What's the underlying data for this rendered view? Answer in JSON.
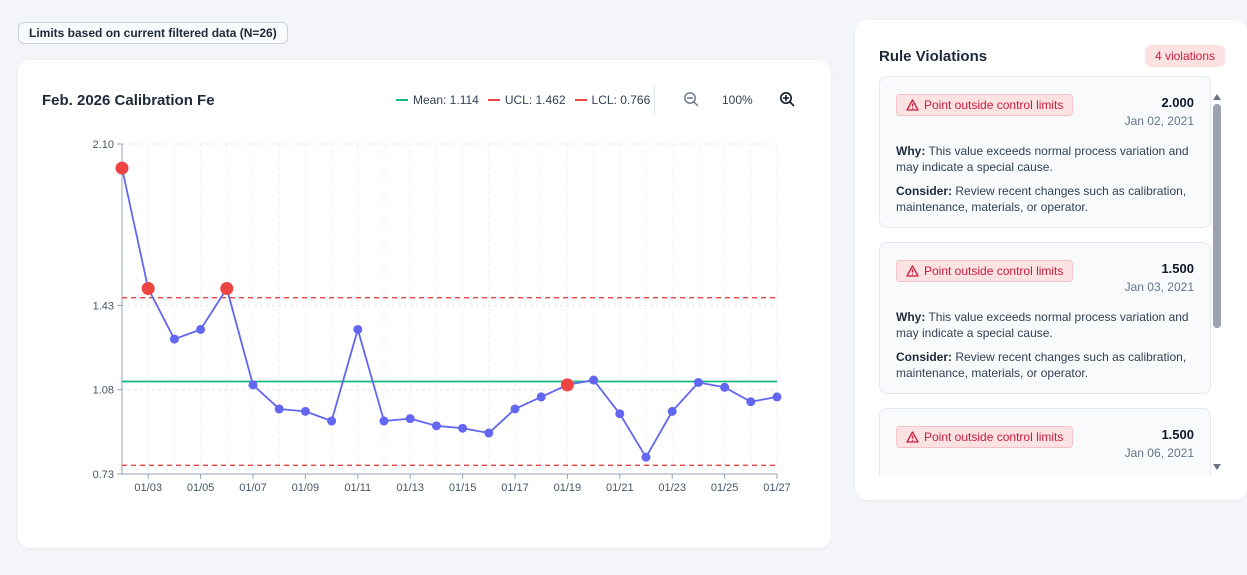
{
  "filter_badge": "Limits based on current filtered data (N=26)",
  "chart_card": {
    "title": "Feb. 2026 Calibration Fe",
    "legend": {
      "mean": "Mean: 1.114",
      "ucl": "UCL: 1.462",
      "lcl": "LCL: 0.766"
    },
    "zoom_level": "100%",
    "zoom_out_icon": "zoom-out-icon",
    "zoom_in_icon": "zoom-in-icon"
  },
  "colors": {
    "line": "#6366f1",
    "mean": "#10b981",
    "limit": "#ef4444",
    "violation": "#ef4444"
  },
  "chart_data": {
    "type": "line",
    "title": "Feb. 2026 Calibration Fe",
    "x": [
      "01/02",
      "01/03",
      "01/04",
      "01/05",
      "01/06",
      "01/07",
      "01/08",
      "01/09",
      "01/10",
      "01/11",
      "01/12",
      "01/13",
      "01/14",
      "01/15",
      "01/16",
      "01/17",
      "01/18",
      "01/19",
      "01/20",
      "01/21",
      "01/22",
      "01/23",
      "01/24",
      "01/25",
      "01/26",
      "01/27"
    ],
    "x_tick_labels": [
      "01/03",
      "01/05",
      "01/07",
      "01/09",
      "01/11",
      "01/13",
      "01/15",
      "01/17",
      "01/19",
      "01/21",
      "01/23",
      "01/25",
      "01/27"
    ],
    "y_tick_labels": [
      "2.10",
      "1.43",
      "1.08",
      "0.73"
    ],
    "values": [
      2.0,
      1.5,
      1.29,
      1.33,
      1.5,
      1.1,
      1.0,
      0.99,
      0.95,
      1.33,
      0.95,
      0.96,
      0.93,
      0.92,
      0.9,
      1.0,
      1.05,
      1.1,
      1.12,
      0.98,
      0.8,
      0.99,
      1.11,
      1.09,
      1.03,
      1.05
    ],
    "violations": [
      0,
      1,
      4,
      17
    ],
    "mean": 1.114,
    "ucl": 1.462,
    "lcl": 0.766,
    "ylim": [
      0.73,
      2.1
    ],
    "grid": true
  },
  "violations_panel": {
    "title": "Rule Violations",
    "count_label": "4 violations",
    "items": [
      {
        "rule": "Point outside control limits",
        "value": "2.000",
        "date": "Jan 02, 2021",
        "why_label": "Why:",
        "why": "This value exceeds normal process variation and may indicate a special cause.",
        "consider_label": "Consider:",
        "consider": "Review recent changes such as calibration, maintenance, materials, or operator."
      },
      {
        "rule": "Point outside control limits",
        "value": "1.500",
        "date": "Jan 03, 2021",
        "why_label": "Why:",
        "why": "This value exceeds normal process variation and may indicate a special cause.",
        "consider_label": "Consider:",
        "consider": "Review recent changes such as calibration, maintenance, materials, or operator."
      },
      {
        "rule": "Point outside control limits",
        "value": "1.500",
        "date": "Jan 06, 2021"
      }
    ]
  }
}
